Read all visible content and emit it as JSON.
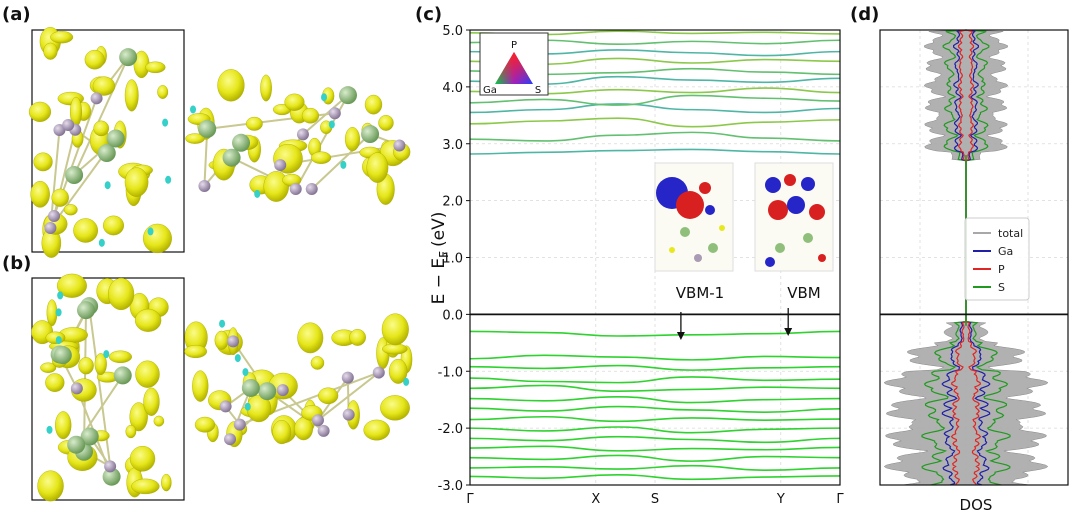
{
  "panels": {
    "a": "(a)",
    "b": "(b)",
    "c": "(c)",
    "d": "(d)"
  },
  "colors": {
    "isosurface": "#e8e81e",
    "isosurface_dark": "#b8b800",
    "cyan": "#35d0c8",
    "atom_green": "#8fbf7a",
    "atom_purple": "#a99bb3",
    "band_green": "#2fd22f",
    "band_teal": "#4fb6a6",
    "dos_fill": "#a8a8a8",
    "ga": "#1f1fa8",
    "p": "#e02525",
    "s": "#1f9a1f",
    "orbital_red": "#d92020",
    "orbital_blue": "#2525c8"
  },
  "chart_data": [
    {
      "type": "line",
      "panel": "c",
      "ylabel": "E − E_F (eV)",
      "ylabel_main": "E − E",
      "ylabel_sub": "F",
      "ylabel_unit": "(eV)",
      "ylim": [
        -3.0,
        5.0
      ],
      "yticks": [
        "-3.0",
        "-2.0",
        "-1.0",
        "0.0",
        "1.0",
        "2.0",
        "3.0",
        "4.0",
        "5.0"
      ],
      "ytick_values": [
        -3,
        -2,
        -1,
        0,
        1,
        2,
        3,
        4,
        5
      ],
      "kpath": [
        "Γ",
        "X",
        "S",
        "Y",
        "Γ"
      ],
      "kpath_positions": [
        0,
        0.34,
        0.5,
        0.84,
        1.0
      ],
      "grid": true,
      "fermi_level": 0.0,
      "triangle_legend": {
        "top": "P",
        "left": "Ga",
        "right": "S"
      },
      "insets": [
        {
          "label": "VBM-1",
          "arrow_k": 0.57,
          "arrow_e": -0.45
        },
        {
          "label": "VBM",
          "arrow_k": 0.86,
          "arrow_e": -0.38
        }
      ],
      "series": [
        {
          "band": "conduction",
          "values": [
            2.82,
            2.85,
            2.88,
            2.9,
            2.86,
            2.82
          ]
        },
        {
          "band": "conduction",
          "values": [
            3.08,
            3.05,
            3.15,
            3.2,
            3.1,
            3.05
          ]
        },
        {
          "band": "conduction",
          "values": [
            3.35,
            3.4,
            3.45,
            3.3,
            3.38,
            3.42
          ]
        },
        {
          "band": "conduction",
          "values": [
            3.55,
            3.6,
            3.7,
            3.6,
            3.55,
            3.62
          ]
        },
        {
          "band": "conduction",
          "values": [
            3.72,
            3.78,
            3.68,
            3.85,
            3.8,
            3.75
          ]
        },
        {
          "band": "conduction",
          "values": [
            3.92,
            3.88,
            3.95,
            3.9,
            3.98,
            3.9
          ]
        },
        {
          "band": "conduction",
          "values": [
            4.1,
            4.05,
            4.18,
            4.12,
            4.08,
            4.15
          ]
        },
        {
          "band": "conduction",
          "values": [
            4.28,
            4.22,
            4.25,
            4.32,
            4.26,
            4.22
          ]
        },
        {
          "band": "conduction",
          "values": [
            4.45,
            4.4,
            4.5,
            4.42,
            4.48,
            4.45
          ]
        },
        {
          "band": "conduction",
          "values": [
            4.62,
            4.58,
            4.65,
            4.6,
            4.55,
            4.62
          ]
        },
        {
          "band": "conduction",
          "values": [
            4.78,
            4.82,
            4.75,
            4.8,
            4.76,
            4.82
          ]
        },
        {
          "band": "conduction",
          "values": [
            4.95,
            4.92,
            4.98,
            4.94,
            4.96,
            4.93
          ]
        },
        {
          "band": "valence",
          "values": [
            -0.3,
            -0.32,
            -0.38,
            -0.36,
            -0.34,
            -0.3
          ]
        },
        {
          "band": "valence",
          "values": [
            -0.78,
            -0.72,
            -0.75,
            -0.8,
            -0.74,
            -0.76
          ]
        },
        {
          "band": "valence",
          "values": [
            -0.92,
            -0.95,
            -0.9,
            -0.98,
            -0.94,
            -0.92
          ]
        },
        {
          "band": "valence",
          "values": [
            -1.12,
            -1.18,
            -1.2,
            -1.1,
            -1.16,
            -1.14
          ]
        },
        {
          "band": "valence",
          "values": [
            -1.3,
            -1.25,
            -1.35,
            -1.32,
            -1.28,
            -1.3
          ]
        },
        {
          "band": "valence",
          "values": [
            -1.48,
            -1.52,
            -1.45,
            -1.55,
            -1.5,
            -1.48
          ]
        },
        {
          "band": "valence",
          "values": [
            -1.65,
            -1.7,
            -1.62,
            -1.68,
            -1.72,
            -1.66
          ]
        },
        {
          "band": "valence",
          "values": [
            -1.85,
            -1.8,
            -1.88,
            -1.82,
            -1.86,
            -1.84
          ]
        },
        {
          "band": "valence",
          "values": [
            -2.0,
            -2.05,
            -1.98,
            -2.08,
            -2.02,
            -2.0
          ]
        },
        {
          "band": "valence",
          "values": [
            -2.18,
            -2.22,
            -2.15,
            -2.2,
            -2.25,
            -2.18
          ]
        },
        {
          "band": "valence",
          "values": [
            -2.35,
            -2.32,
            -2.4,
            -2.36,
            -2.38,
            -2.34
          ]
        },
        {
          "band": "valence",
          "values": [
            -2.52,
            -2.55,
            -2.48,
            -2.58,
            -2.5,
            -2.52
          ]
        },
        {
          "band": "valence",
          "values": [
            -2.7,
            -2.68,
            -2.72,
            -2.66,
            -2.74,
            -2.7
          ]
        },
        {
          "band": "valence",
          "values": [
            -2.85,
            -2.88,
            -2.82,
            -2.9,
            -2.86,
            -2.84
          ]
        }
      ]
    },
    {
      "type": "area",
      "panel": "d",
      "xlabel": "DOS",
      "ylim": [
        -3.0,
        5.0
      ],
      "grid": true,
      "legend": "right",
      "legend_entries": [
        "total",
        "Ga",
        "P",
        "S"
      ],
      "series": [
        {
          "name": "total",
          "color": "#a8a8a8"
        },
        {
          "name": "Ga",
          "color": "#1f1fa8"
        },
        {
          "name": "P",
          "color": "#e02525"
        },
        {
          "name": "S",
          "color": "#1f9a1f"
        }
      ]
    }
  ]
}
